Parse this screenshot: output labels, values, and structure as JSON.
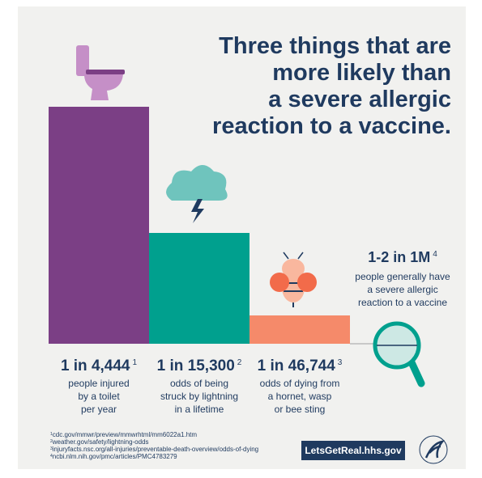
{
  "title": [
    "Three things that are",
    "more likely than",
    "a severe allergic",
    "reaction to a vaccine."
  ],
  "items": [
    {
      "odds": "1 in 4,444",
      "note": "1",
      "description": [
        "people injured",
        "by a toilet",
        "per year"
      ]
    },
    {
      "odds": "1 in 15,300",
      "note": "2",
      "description": [
        "odds of being",
        "struck by lightning",
        "in a lifetime"
      ]
    },
    {
      "odds": "1 in 46,744",
      "note": "3",
      "description": [
        "odds of dying from",
        "a hornet, wasp",
        "or bee sting"
      ]
    },
    {
      "odds": "1-2 in 1M",
      "note": "4",
      "description": [
        "people generally have",
        "a severe allergic",
        "reaction to a vaccine"
      ]
    }
  ],
  "footnotes": [
    "cdc.gov/mmwr/preview/mmwrhtml/mm6022a1.htm",
    "weather.gov/safety/lightning-odds",
    "injuryfacts.nsc.org/all-injuries/preventable-death-overview/odds-of-dying",
    "ncbi.nlm.nih.gov/pmc/articles/PMC4783279"
  ],
  "url": "LetsGetReal.hhs.gov"
}
